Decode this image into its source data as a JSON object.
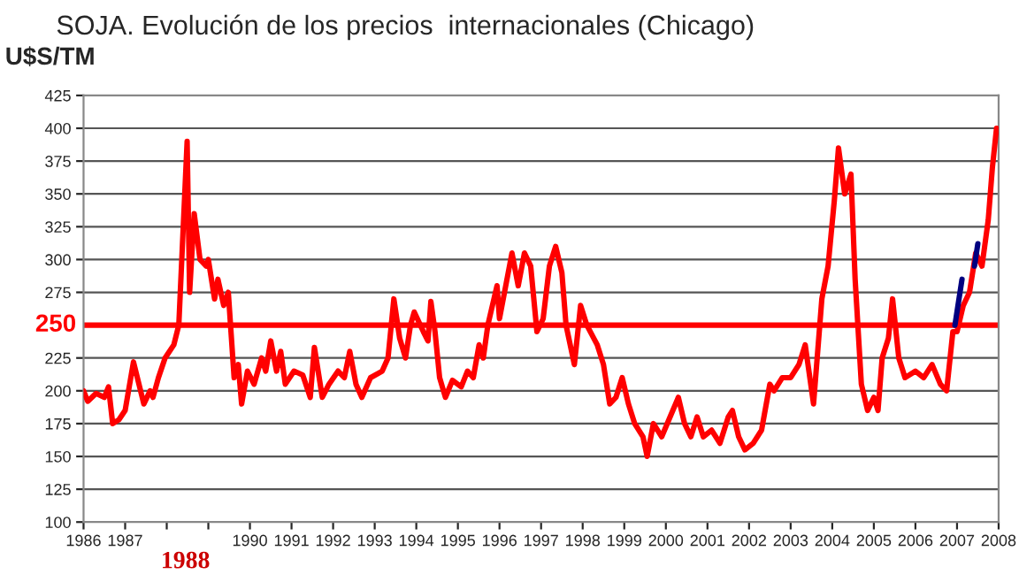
{
  "chart_data": {
    "type": "line",
    "title": "SOJA. Evolución de los precios  internacionales (Chicago)",
    "ylabel": "U$S/TM",
    "annotations": [
      "1988"
    ],
    "series": [
      {
        "color": "#ff0000",
        "x": [
          1986.0,
          1986.1,
          1986.3,
          1986.5,
          1986.6,
          1986.7,
          1986.85,
          1987.0,
          1987.2,
          1987.45,
          1987.6,
          1987.67,
          1987.8,
          1987.96,
          1988.17,
          1988.29,
          1988.49,
          1988.55,
          1988.66,
          1988.8,
          1988.95,
          1989.0,
          1989.15,
          1989.23,
          1989.37,
          1989.48,
          1989.62,
          1989.72,
          1989.8,
          1989.94,
          1990.1,
          1990.28,
          1990.38,
          1990.5,
          1990.64,
          1990.74,
          1990.85,
          1991.06,
          1991.27,
          1991.45,
          1991.55,
          1991.74,
          1991.9,
          1992.12,
          1992.27,
          1992.4,
          1992.55,
          1992.69,
          1992.9,
          1993.18,
          1993.32,
          1993.46,
          1993.6,
          1993.74,
          1993.86,
          1993.95,
          1994.17,
          1994.28,
          1994.35,
          1994.45,
          1994.56,
          1994.7,
          1994.87,
          1995.08,
          1995.23,
          1995.37,
          1995.51,
          1995.61,
          1995.72,
          1995.94,
          1996.0,
          1996.3,
          1996.45,
          1996.6,
          1996.75,
          1996.9,
          1997.05,
          1997.2,
          1997.35,
          1997.5,
          1997.6,
          1997.8,
          1997.95,
          1998.1,
          1998.35,
          1998.5,
          1998.65,
          1998.8,
          1998.95,
          1999.1,
          1999.25,
          1999.45,
          1999.55,
          1999.7,
          1999.9,
          2000.1,
          2000.3,
          2000.45,
          2000.6,
          2000.75,
          2000.9,
          2001.1,
          2001.3,
          2001.5,
          2001.6,
          2001.75,
          2001.9,
          2002.1,
          2002.3,
          2002.5,
          2002.6,
          2002.8,
          2003.0,
          2003.2,
          2003.35,
          2003.55,
          2003.75,
          2003.9,
          2004.05,
          2004.15,
          2004.3,
          2004.45,
          2004.55,
          2004.7,
          2004.85,
          2005.0,
          2005.1,
          2005.2,
          2005.35,
          2005.45,
          2005.6,
          2005.75,
          2006.0,
          2006.2,
          2006.4,
          2006.6,
          2006.75,
          2006.9,
          2007.0,
          2007.15,
          2007.3,
          2007.45,
          2007.6,
          2007.75,
          2007.85,
          2007.95
        ],
        "values": [
          200,
          192,
          198,
          195,
          203,
          175,
          178,
          185,
          222,
          190,
          200,
          195,
          210,
          225,
          235,
          250,
          390,
          275,
          335,
          300,
          295,
          300,
          270,
          285,
          265,
          275,
          210,
          220,
          190,
          215,
          205,
          225,
          215,
          238,
          215,
          230,
          205,
          215,
          212,
          195,
          233,
          195,
          205,
          215,
          210,
          230,
          205,
          195,
          210,
          215,
          225,
          270,
          240,
          225,
          250,
          260,
          245,
          238,
          268,
          245,
          210,
          195,
          208,
          203,
          215,
          210,
          235,
          225,
          250,
          280,
          255,
          305,
          280,
          305,
          295,
          245,
          255,
          295,
          310,
          290,
          250,
          220,
          265,
          250,
          235,
          220,
          190,
          195,
          210,
          190,
          175,
          165,
          150,
          175,
          165,
          180,
          195,
          175,
          165,
          180,
          165,
          170,
          160,
          180,
          185,
          165,
          155,
          160,
          170,
          205,
          200,
          210,
          210,
          220,
          235,
          190,
          270,
          295,
          345,
          385,
          350,
          365,
          285,
          205,
          185,
          195,
          185,
          225,
          240,
          270,
          225,
          210,
          215,
          210,
          220,
          205,
          200,
          245,
          245,
          265,
          275,
          305,
          295,
          330,
          370,
          400
        ]
      },
      {
        "color": "#000080",
        "x": [
          2006.95,
          2007.12,
          2007.2,
          2007.42,
          2007.5
        ],
        "values": [
          250,
          285,
          null,
          295,
          312
        ]
      }
    ],
    "xlim": [
      1986,
      2008
    ],
    "xticks": [
      1986,
      1987,
      {
        "value": 1988,
        "label": null
      },
      {
        "value": 1989,
        "label": null
      },
      1990,
      1991,
      1992,
      1993,
      1994,
      1995,
      1996,
      1997,
      1998,
      1999,
      2000,
      2001,
      2002,
      2003,
      2004,
      2005,
      2006,
      2007,
      2008
    ],
    "ylim": [
      100,
      425
    ],
    "yticks": [
      100,
      125,
      150,
      175,
      200,
      225,
      275,
      300,
      325,
      350,
      375,
      400,
      425
    ],
    "ref_lines": [
      {
        "axis": "y",
        "value": 250,
        "label": "250",
        "color": "#ff0000"
      }
    ],
    "grid": "y",
    "legend": false,
    "line_style": "solid"
  }
}
